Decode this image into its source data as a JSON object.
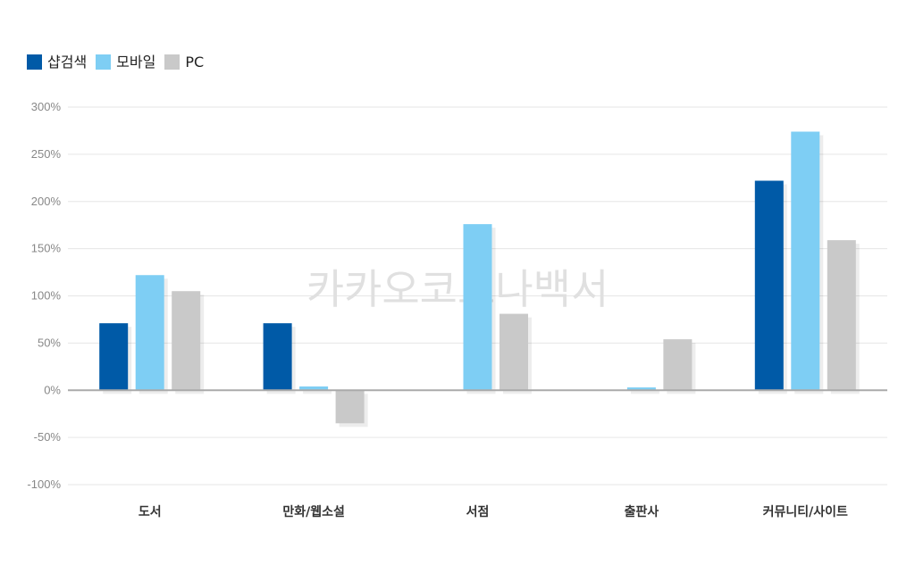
{
  "chart_data": {
    "type": "bar",
    "categories": [
      "도서",
      "만화/웹소설",
      "서점",
      "출판사",
      "커뮤니티/사이트"
    ],
    "series": [
      {
        "name": "샵검색",
        "color": "#005aa7",
        "values": [
          71,
          71,
          0,
          0,
          222
        ]
      },
      {
        "name": "모바일",
        "color": "#7ecef4",
        "values": [
          122,
          4,
          176,
          3,
          274
        ]
      },
      {
        "name": "PC",
        "color": "#c9c9c9",
        "values": [
          105,
          -35,
          81,
          54,
          159
        ]
      }
    ],
    "ylim": [
      -100,
      300
    ],
    "yticks": [
      300,
      250,
      200,
      150,
      100,
      50,
      0,
      -50,
      -100
    ],
    "ytick_labels": [
      "300%",
      "250%",
      "200%",
      "150%",
      "100%",
      "50%",
      "0%",
      "-50%",
      "-100%"
    ],
    "legend_position": "top-left",
    "grid": true,
    "watermark": "카카오코로나백서"
  }
}
